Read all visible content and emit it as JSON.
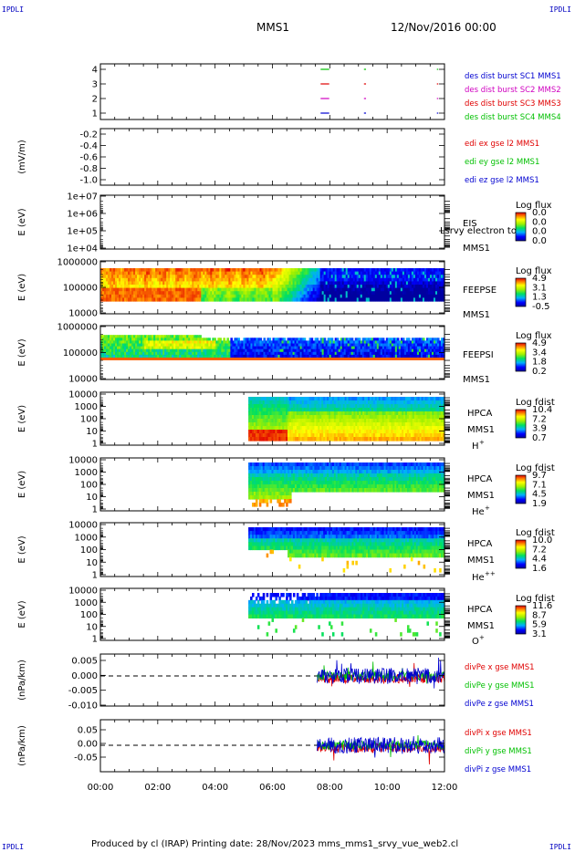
{
  "corner_label": "IPDLI",
  "header": {
    "spacecraft": "MMS1",
    "datetime": "12/Nov/2016 00:00"
  },
  "footer": {
    "text": "Produced by cl (IRAP)   Printing date: 28/Nov/2023   mms_mms1_srvy_vue_web2.cl"
  },
  "colors": {
    "red": "#e00000",
    "green": "#00c000",
    "blue": "#0000d0",
    "magenta": "#d000c0"
  },
  "chart_data": {
    "type": "heatmap",
    "x_ticks": [
      "00:00",
      "02:00",
      "04:00",
      "06:00",
      "08:00",
      "10:00",
      "12:00"
    ],
    "panels": [
      {
        "name": "burst",
        "kind": "burst",
        "yticks": [
          "4",
          "3",
          "2",
          "1"
        ],
        "legend": [
          {
            "text": "des dist burst SC1 MMS1",
            "color": "#0000d0"
          },
          {
            "text": "des dist burst SC2 MMS2",
            "color": "#d000c0"
          },
          {
            "text": "des dist burst SC3 MMS3",
            "color": "#e00000"
          },
          {
            "text": "des dist burst SC4 MMS4",
            "color": "#00c000"
          }
        ]
      },
      {
        "name": "edi",
        "kind": "empty",
        "ylabel": "(mV/m)",
        "yticks": [
          "-0.2",
          "-0.4",
          "-0.6",
          "-0.8",
          "-1.0"
        ],
        "legend": [
          {
            "text": "edi ex gse l2 MMS1",
            "color": "#e00000"
          },
          {
            "text": "edi ey gse l2 MMS1",
            "color": "#00c000"
          },
          {
            "text": "edi ez gse l2 MMS1",
            "color": "#0000d0"
          }
        ]
      },
      {
        "name": "eis",
        "kind": "empty",
        "ylabel": "E (eV)",
        "yticks": [
          "1e+07",
          "1e+06",
          "1e+05",
          "1e+04"
        ],
        "labels": [
          "EIS",
          "MMS1"
        ],
        "overlay": "Lsrvy electron to",
        "cbar": {
          "title": "Log flux",
          "ticks": [
            "0.0",
            "0.0",
            "0.0",
            "0.0"
          ]
        }
      },
      {
        "name": "feepse",
        "kind": "feepse",
        "ylabel": "E (eV)",
        "yticks": [
          "1000000",
          "100000",
          "10000"
        ],
        "labels": [
          "FEEPSE",
          "MMS1"
        ],
        "cbar": {
          "title": "Log flux",
          "ticks": [
            "4.9",
            "3.1",
            "1.3",
            "-0.5"
          ]
        }
      },
      {
        "name": "feepsi",
        "kind": "feepsi",
        "ylabel": "E (eV)",
        "yticks": [
          "1000000",
          "100000",
          "10000"
        ],
        "labels": [
          "FEEPSI",
          "MMS1"
        ],
        "cbar": {
          "title": "Log flux",
          "ticks": [
            "4.9",
            "3.4",
            "1.8",
            "0.2"
          ]
        }
      },
      {
        "name": "hpca-h",
        "kind": "hpca-h",
        "ylabel": "E (eV)",
        "yticks": [
          "10000",
          "1000",
          "100",
          "10",
          "1"
        ],
        "labels": [
          "HPCA",
          "MMS1"
        ],
        "species": "H",
        "sup": "+",
        "cbar": {
          "title": "Log fdist",
          "ticks": [
            "10.4",
            "7.2",
            "3.9",
            "0.7"
          ]
        }
      },
      {
        "name": "hpca-he",
        "kind": "hpca-he",
        "ylabel": "E (eV)",
        "yticks": [
          "10000",
          "1000",
          "100",
          "10",
          "1"
        ],
        "labels": [
          "HPCA",
          "MMS1"
        ],
        "species": "He",
        "sup": "+",
        "cbar": {
          "title": "Log fdist",
          "ticks": [
            "9.7",
            "7.1",
            "4.5",
            "1.9"
          ]
        }
      },
      {
        "name": "hpca-he2",
        "kind": "hpca-he2",
        "ylabel": "E (eV)",
        "yticks": [
          "10000",
          "1000",
          "100",
          "10",
          "1"
        ],
        "labels": [
          "HPCA",
          "MMS1"
        ],
        "species": "He",
        "sup": "++",
        "cbar": {
          "title": "Log fdist",
          "ticks": [
            "10.0",
            "7.2",
            "4.4",
            "1.6"
          ]
        }
      },
      {
        "name": "hpca-o",
        "kind": "hpca-o",
        "ylabel": "E (eV)",
        "yticks": [
          "10000",
          "1000",
          "100",
          "10",
          "1"
        ],
        "labels": [
          "HPCA",
          "MMS1"
        ],
        "species": "O",
        "sup": "+",
        "cbar": {
          "title": "Log fdist",
          "ticks": [
            "11.6",
            "8.7",
            "5.9",
            "3.1"
          ]
        }
      },
      {
        "name": "divpe",
        "kind": "line",
        "ylabel": "(nPa/km)",
        "yticks": [
          "0.005",
          "0.000",
          "-0.005",
          "-0.010"
        ],
        "legend": [
          {
            "text": "divPe x gse MMS1",
            "color": "#e00000"
          },
          {
            "text": "divPe y gse MMS1",
            "color": "#00c000"
          },
          {
            "text": "divPe z gse MMS1",
            "color": "#0000d0"
          }
        ]
      },
      {
        "name": "divpi",
        "kind": "line",
        "ylabel": "(nPa/km)",
        "yticks": [
          "0.05",
          "0.00",
          "-0.05"
        ],
        "legend": [
          {
            "text": "divPi x gse MMS1",
            "color": "#e00000"
          },
          {
            "text": "divPi y gse MMS1",
            "color": "#00c000"
          },
          {
            "text": "divPi z gse MMS1",
            "color": "#0000d0"
          }
        ]
      }
    ]
  }
}
